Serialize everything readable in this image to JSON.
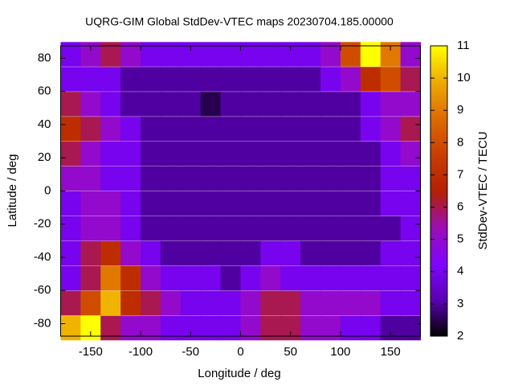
{
  "chart_data": {
    "type": "heatmap",
    "title": "UQRG-GIM Global StdDev-VTEC maps 20230704.185.00000",
    "x_label": "Longitude / deg",
    "y_label": "Latitude / deg",
    "colorbar_label": "StdDev-VTEC / TECU",
    "x": [
      -170,
      -150,
      -130,
      -110,
      -90,
      -70,
      -50,
      -30,
      -10,
      10,
      30,
      50,
      70,
      90,
      110,
      130,
      150,
      170
    ],
    "y": [
      82.5,
      67.5,
      52.5,
      37.5,
      22.5,
      7.5,
      -7.5,
      -22.5,
      -37.5,
      -52.5,
      -67.5,
      -82.5
    ],
    "z": [
      [
        4,
        5,
        6,
        5,
        4,
        4,
        4,
        4,
        4,
        4,
        4,
        4,
        4,
        5,
        8,
        11,
        9,
        5
      ],
      [
        4,
        4,
        4,
        3,
        3,
        3,
        3,
        3,
        3,
        3,
        3,
        3,
        3,
        4,
        5,
        7,
        8,
        6
      ],
      [
        6,
        5,
        4,
        3,
        3,
        3,
        3,
        2.5,
        3,
        3,
        3,
        3,
        3,
        3,
        3,
        4,
        5,
        5
      ],
      [
        7,
        6,
        5,
        4,
        3,
        3,
        3,
        3,
        3,
        3,
        3,
        3,
        3,
        3,
        3,
        4,
        5,
        6
      ],
      [
        6,
        5,
        4,
        4,
        3,
        3,
        3,
        3,
        3,
        3,
        3,
        3,
        3,
        3,
        3,
        3,
        4,
        5
      ],
      [
        5,
        5,
        4,
        4,
        3,
        3,
        3,
        3,
        3,
        3,
        3,
        3,
        3,
        3,
        3,
        3,
        4,
        4
      ],
      [
        4,
        5,
        5,
        4,
        3,
        3,
        3,
        3,
        3,
        3,
        3,
        3,
        3,
        3,
        3,
        3,
        4,
        4
      ],
      [
        4,
        5,
        5,
        4,
        3,
        3,
        3,
        3,
        3,
        3,
        3,
        3,
        3,
        3,
        3,
        3,
        3,
        4
      ],
      [
        4,
        6,
        7,
        5,
        4,
        3,
        3,
        3,
        3,
        3,
        4,
        4,
        3,
        3,
        3,
        3,
        4,
        4
      ],
      [
        4,
        6,
        9,
        7,
        5,
        4,
        4,
        4,
        3,
        4,
        5,
        4,
        4,
        4,
        4,
        4,
        4,
        4
      ],
      [
        6,
        8,
        10,
        7,
        6,
        5,
        4,
        4,
        4,
        5,
        6,
        6,
        5,
        5,
        5,
        5,
        4,
        4
      ],
      [
        10,
        11,
        6,
        5,
        5,
        4,
        4,
        4,
        4,
        5,
        6,
        6,
        5,
        5,
        4,
        4,
        3,
        3
      ]
    ],
    "xlim": [
      -180,
      180
    ],
    "ylim": [
      -87.5,
      87.5
    ],
    "zlim": [
      2,
      11
    ],
    "xticks": [
      -150,
      -100,
      -50,
      0,
      50,
      100,
      150
    ],
    "yticks": [
      -80,
      -60,
      -40,
      -20,
      0,
      20,
      40,
      60,
      80
    ],
    "zticks": [
      2,
      3,
      4,
      5,
      6,
      7,
      8,
      9,
      10,
      11
    ],
    "palette": [
      "#000000",
      "#5a00b4",
      "#8004ff",
      "#9c0db4",
      "#b42000",
      "#c93e00",
      "#dd6b00",
      "#eeab00",
      "#ffff00"
    ]
  }
}
